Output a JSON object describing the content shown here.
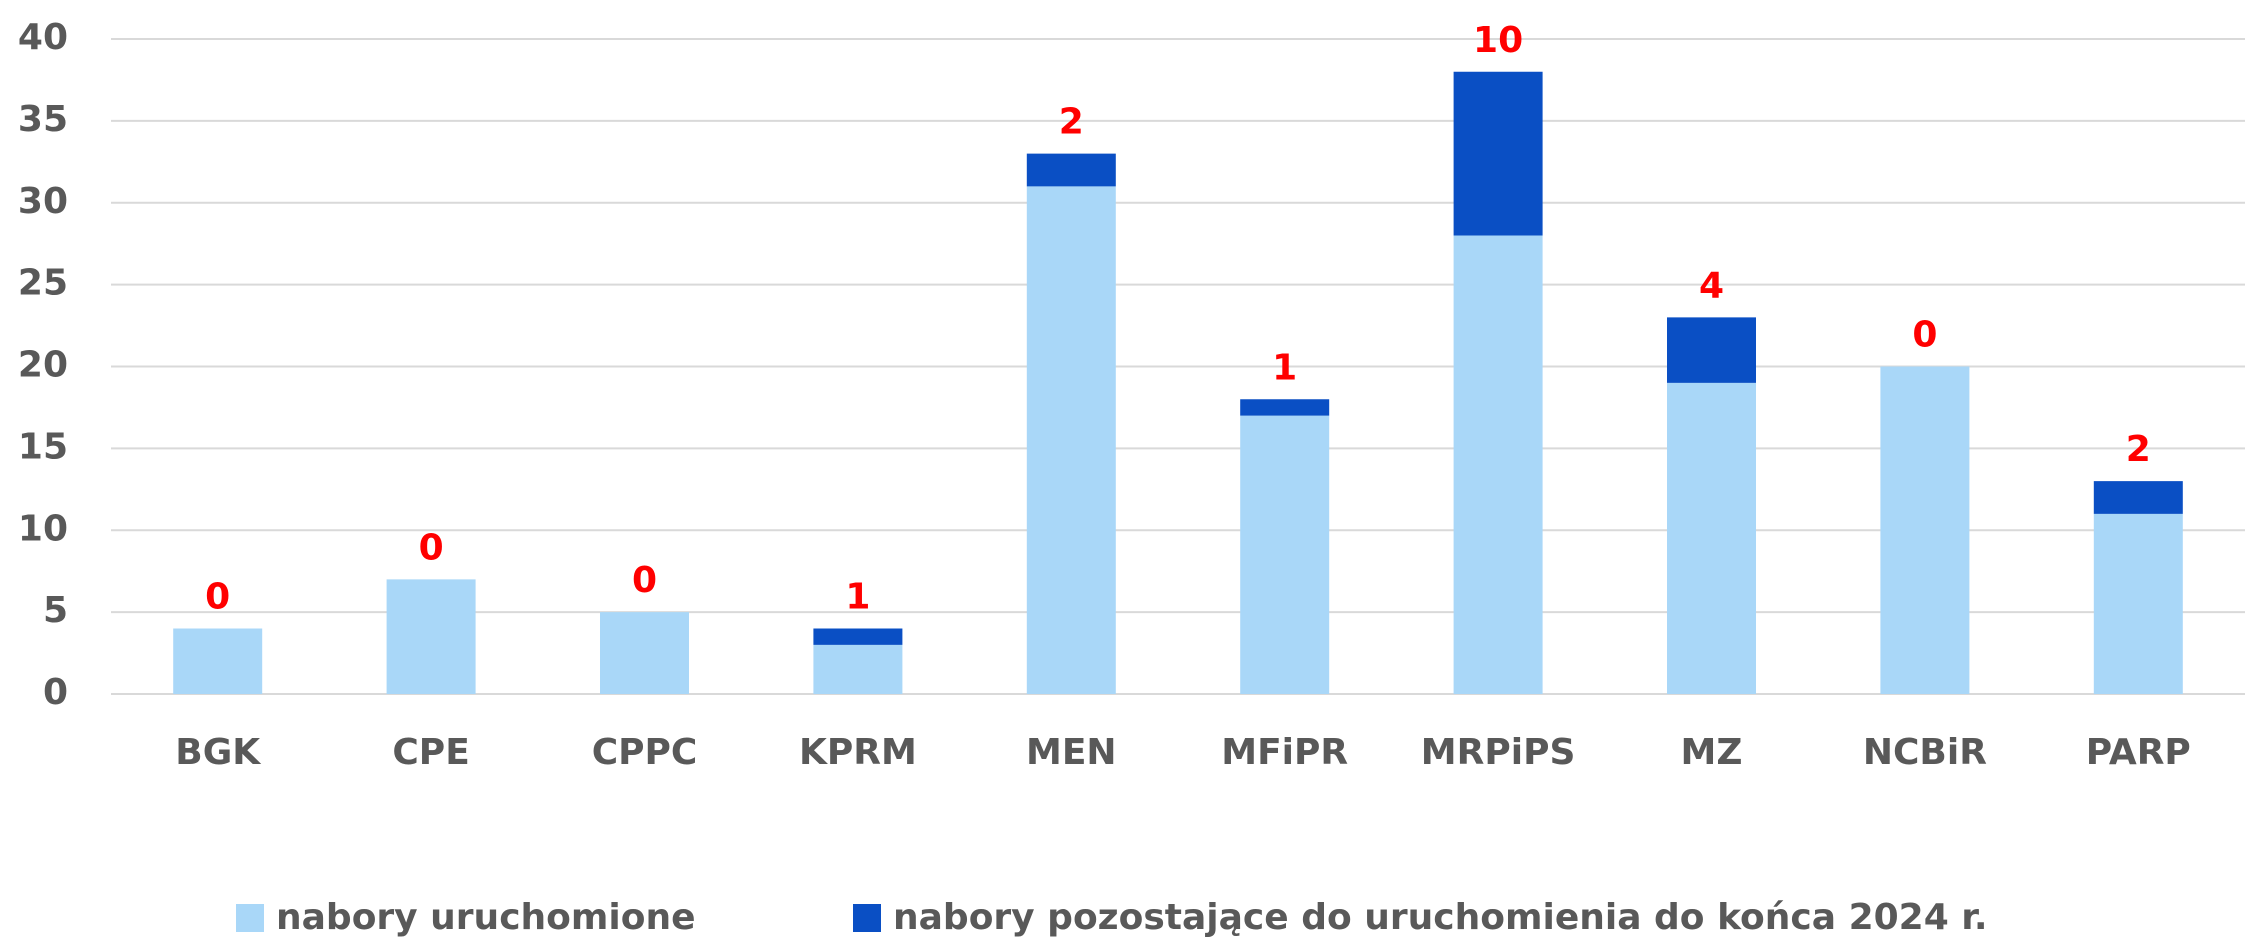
{
  "chart_data": {
    "type": "stacked_bar",
    "categories": [
      "BGK",
      "CPE",
      "CPPC",
      "KPRM",
      "MEN",
      "MFiPR",
      "MRPiPS",
      "MZ",
      "NCBiR",
      "PARP"
    ],
    "series": [
      {
        "name": "nabory uruchomione",
        "color": "#a9d7f8",
        "values": [
          4,
          7,
          5,
          3,
          31,
          17,
          28,
          19,
          20,
          11
        ]
      },
      {
        "name": "nabory pozostające do uruchomienia do końca 2024 r.",
        "color": "#0a4fc4",
        "values": [
          0,
          0,
          0,
          1,
          2,
          1,
          10,
          4,
          0,
          2
        ]
      }
    ],
    "label_series": 1,
    "label_color": "#ff0000",
    "ylim": [
      0,
      40
    ],
    "yticks": [
      0,
      5,
      10,
      15,
      20,
      25,
      30,
      35,
      40
    ],
    "grid": true,
    "legend": "bottom"
  }
}
